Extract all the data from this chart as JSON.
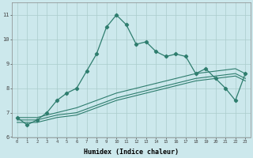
{
  "xlabel": "Humidex (Indice chaleur)",
  "bg_color": "#cce8ec",
  "grid_color": "#aacccc",
  "line_color": "#2e7d6e",
  "x_ticks": [
    0,
    1,
    2,
    3,
    4,
    5,
    6,
    7,
    8,
    9,
    10,
    11,
    12,
    13,
    14,
    15,
    16,
    17,
    18,
    19,
    20,
    21,
    22,
    23
  ],
  "ylim": [
    6,
    11.5
  ],
  "xlim": [
    -0.5,
    23.5
  ],
  "series1_x": [
    0,
    1,
    2,
    3,
    4,
    5,
    6,
    7,
    8,
    9,
    10,
    11,
    12,
    13,
    14,
    15,
    16,
    17,
    18,
    19,
    20,
    21,
    22,
    23
  ],
  "series1_y": [
    6.8,
    6.5,
    6.7,
    7.0,
    7.5,
    7.8,
    8.0,
    8.7,
    9.4,
    10.5,
    11.0,
    10.6,
    9.8,
    9.9,
    9.5,
    9.3,
    9.4,
    9.3,
    8.6,
    8.8,
    8.4,
    8.0,
    7.5,
    8.6
  ],
  "series2_x": [
    0,
    1,
    2,
    3,
    4,
    5,
    6,
    7,
    8,
    9,
    10,
    11,
    12,
    13,
    14,
    15,
    16,
    17,
    18,
    19,
    20,
    21,
    22,
    23
  ],
  "series2_y": [
    6.8,
    6.8,
    6.8,
    6.9,
    7.0,
    7.1,
    7.2,
    7.35,
    7.5,
    7.65,
    7.8,
    7.9,
    8.0,
    8.1,
    8.2,
    8.3,
    8.4,
    8.5,
    8.6,
    8.65,
    8.7,
    8.75,
    8.8,
    8.6
  ],
  "series3_x": [
    0,
    1,
    2,
    3,
    4,
    5,
    6,
    7,
    8,
    9,
    10,
    11,
    12,
    13,
    14,
    15,
    16,
    17,
    18,
    19,
    20,
    21,
    22,
    23
  ],
  "series3_y": [
    6.7,
    6.7,
    6.7,
    6.8,
    6.9,
    6.95,
    7.0,
    7.15,
    7.3,
    7.45,
    7.6,
    7.7,
    7.8,
    7.9,
    8.0,
    8.1,
    8.2,
    8.3,
    8.4,
    8.45,
    8.5,
    8.55,
    8.6,
    8.4
  ],
  "series4_x": [
    0,
    1,
    2,
    3,
    4,
    5,
    6,
    7,
    8,
    9,
    10,
    11,
    12,
    13,
    14,
    15,
    16,
    17,
    18,
    19,
    20,
    21,
    22,
    23
  ],
  "series4_y": [
    6.6,
    6.6,
    6.6,
    6.7,
    6.8,
    6.85,
    6.9,
    7.05,
    7.2,
    7.35,
    7.5,
    7.6,
    7.7,
    7.8,
    7.9,
    8.0,
    8.1,
    8.2,
    8.3,
    8.35,
    8.4,
    8.45,
    8.5,
    8.3
  ]
}
